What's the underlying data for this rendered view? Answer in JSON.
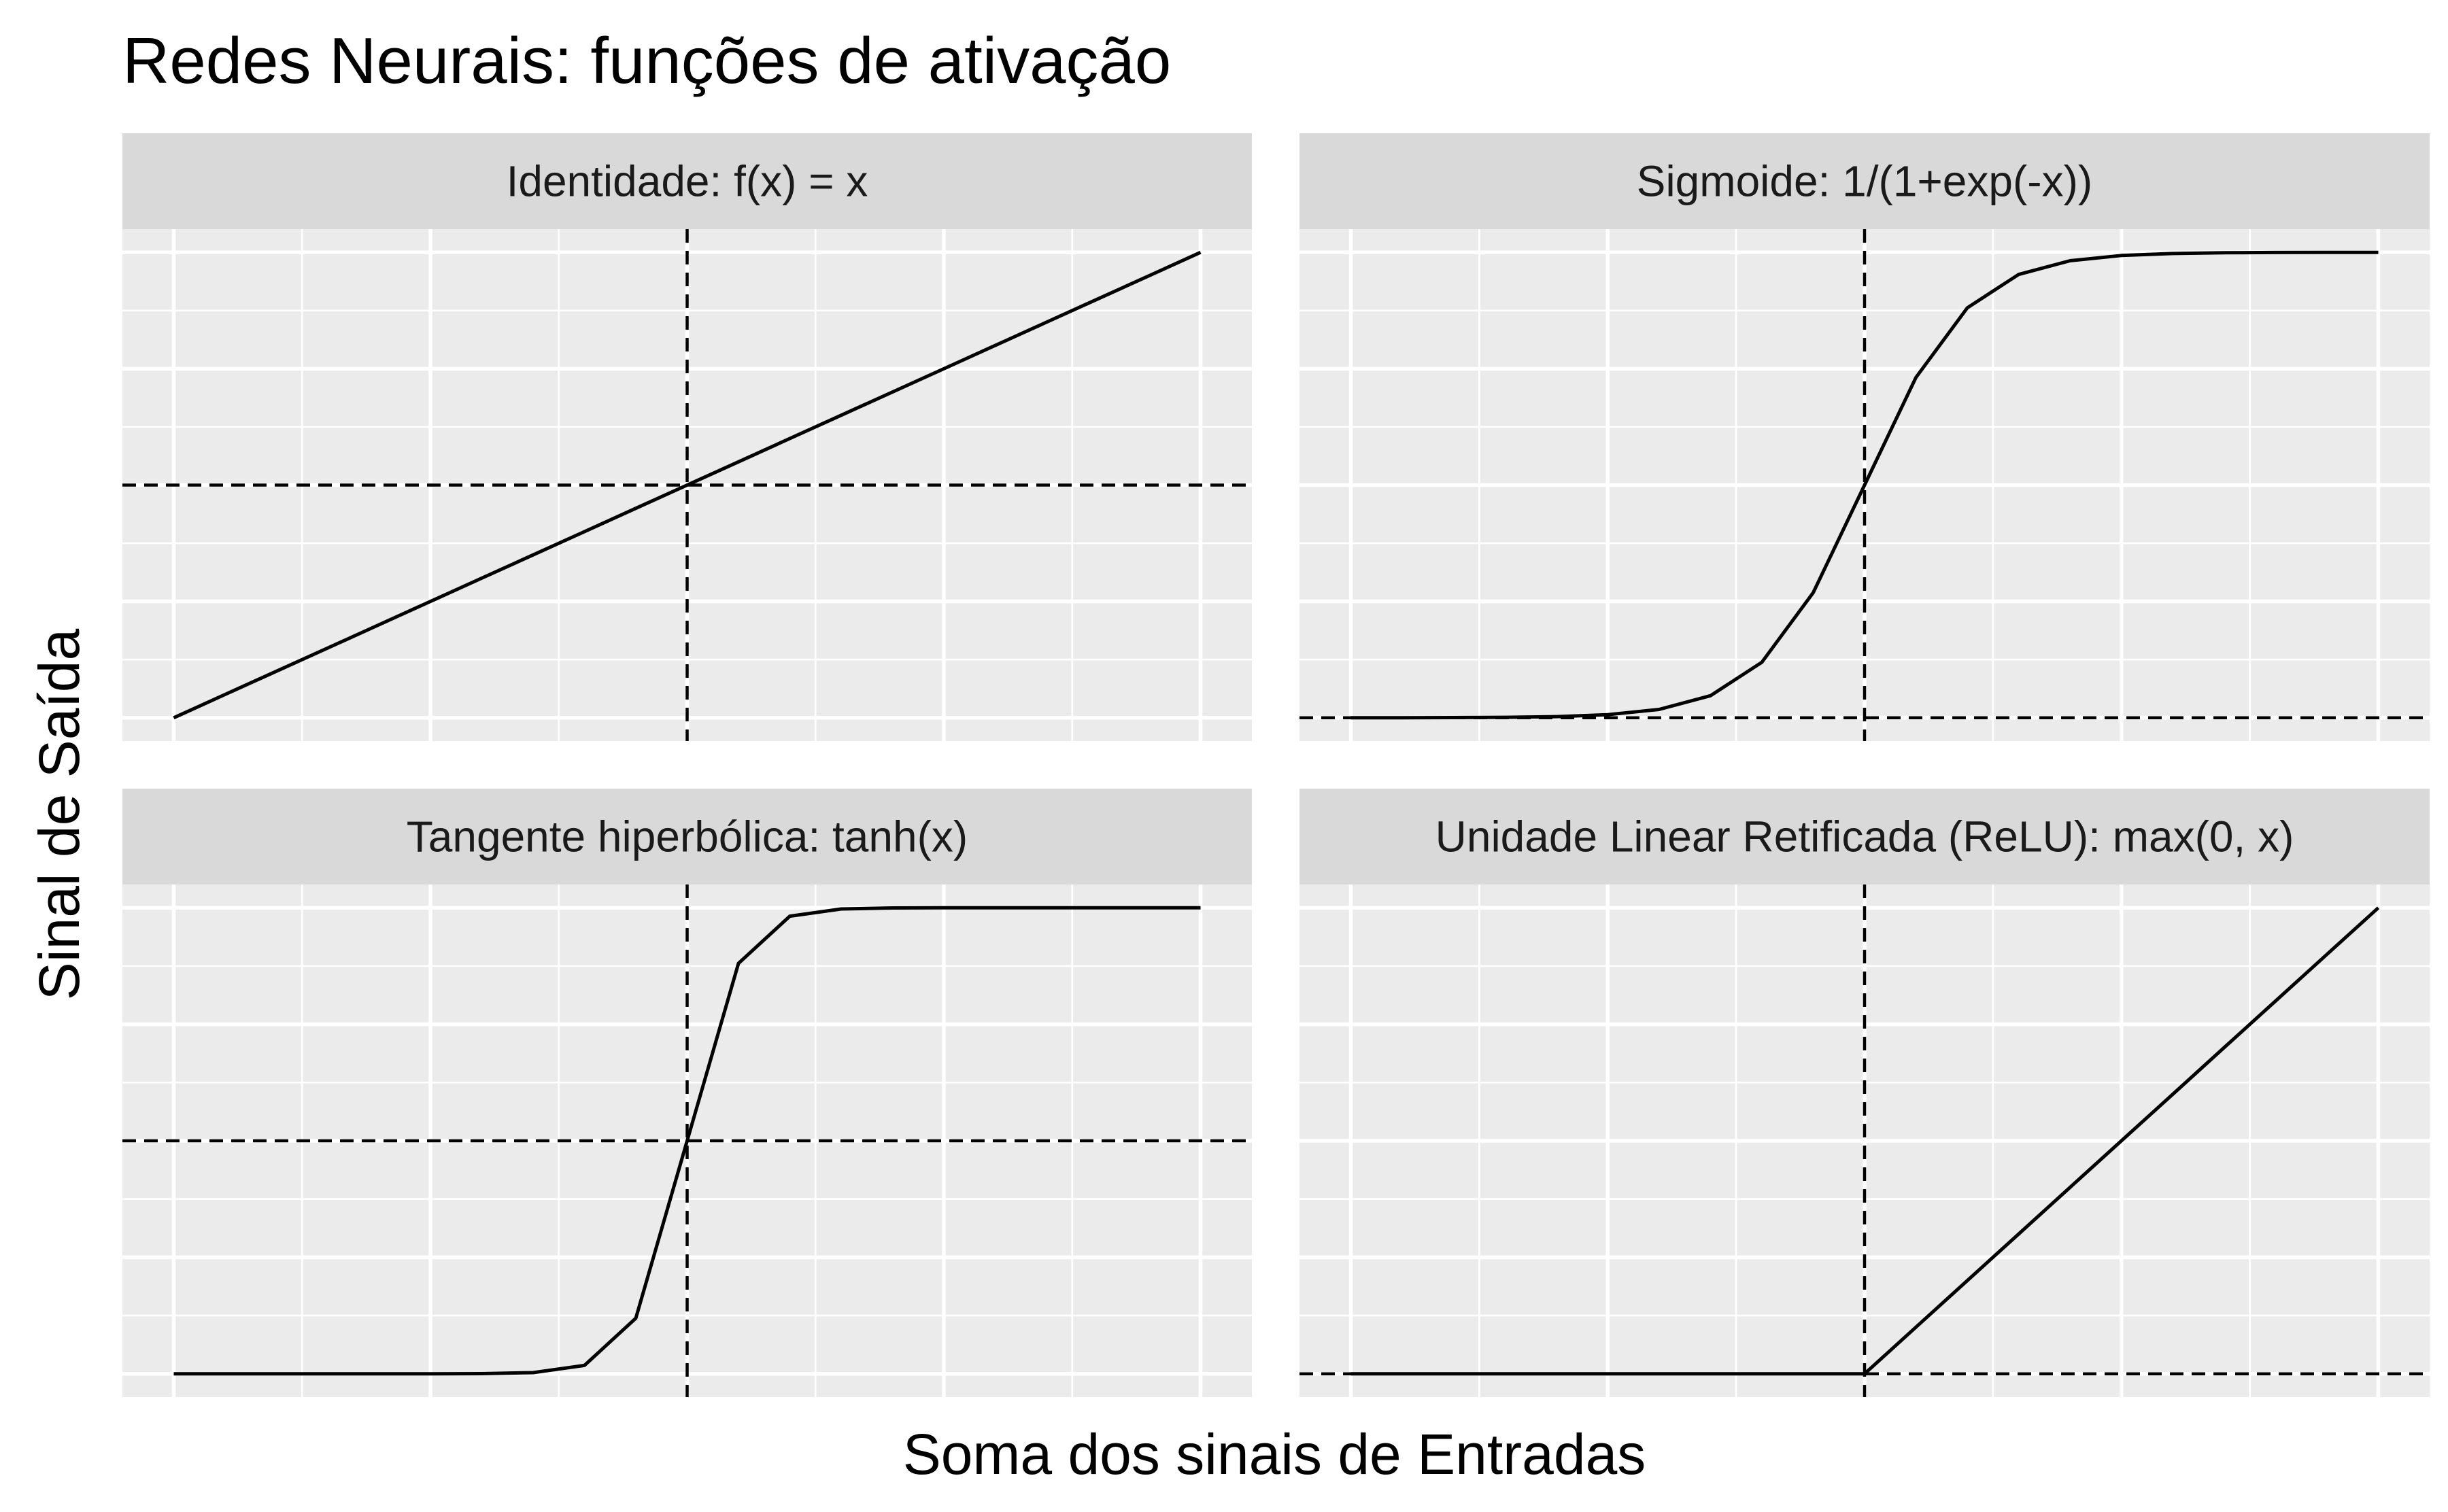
{
  "chart_data": {
    "type": "line",
    "title": "Redes Neurais: funções de ativação",
    "xlabel": "Soma dos sinais de Entradas",
    "ylabel": "Sinal de Saída",
    "x": [
      -10,
      -9,
      -8,
      -7,
      -6,
      -5,
      -4,
      -3,
      -2,
      -1,
      0,
      1,
      2,
      3,
      4,
      5,
      6,
      7,
      8,
      9,
      10
    ],
    "xlim": [
      -11,
      11
    ],
    "grid": true,
    "facets": [
      {
        "name": "Identidade: f(x) = x",
        "values": [
          -10,
          -9,
          -8,
          -7,
          -6,
          -5,
          -4,
          -3,
          -2,
          -1,
          0,
          1,
          2,
          3,
          4,
          5,
          6,
          7,
          8,
          9,
          10
        ],
        "ylim": [
          -11,
          11
        ],
        "y_major_breaks": [
          -10,
          -5,
          0,
          5,
          10
        ],
        "hline": 0,
        "vline": 0
      },
      {
        "name": "Sigmoide: 1/(1+exp(-x))",
        "values": [
          4.54e-05,
          0.000123,
          0.000335,
          0.000911,
          0.00247,
          0.00669,
          0.018,
          0.0474,
          0.1192,
          0.2689,
          0.5,
          0.7311,
          0.8808,
          0.9526,
          0.982,
          0.9933,
          0.9975,
          0.9991,
          0.9997,
          0.9999,
          1.0
        ],
        "ylim": [
          -0.05,
          1.05
        ],
        "y_major_breaks": [
          0,
          0.25,
          0.5,
          0.75,
          1.0
        ],
        "hline": 0,
        "vline": 0
      },
      {
        "name": "Tangente hiperbólica: tanh(x)",
        "values": [
          -1.0,
          -1.0,
          -1.0,
          -1.0,
          -1.0,
          -0.9999,
          -0.9993,
          -0.9951,
          -0.964,
          -0.7616,
          0,
          0.7616,
          0.964,
          0.9951,
          0.9993,
          0.9999,
          1.0,
          1.0,
          1.0,
          1.0,
          1.0
        ],
        "ylim": [
          -1.1,
          1.1
        ],
        "y_major_breaks": [
          -1,
          -0.5,
          0,
          0.5,
          1
        ],
        "hline": 0,
        "vline": 0
      },
      {
        "name": "Unidade Linear Retificada (ReLU): max(0, x)",
        "values": [
          0,
          0,
          0,
          0,
          0,
          0,
          0,
          0,
          0,
          0,
          0,
          1,
          2,
          3,
          4,
          5,
          6,
          7,
          8,
          9,
          10
        ],
        "ylim": [
          -0.5,
          10.5
        ],
        "y_major_breaks": [
          0,
          2.5,
          5,
          7.5,
          10
        ],
        "hline": 0,
        "vline": 0
      }
    ]
  }
}
